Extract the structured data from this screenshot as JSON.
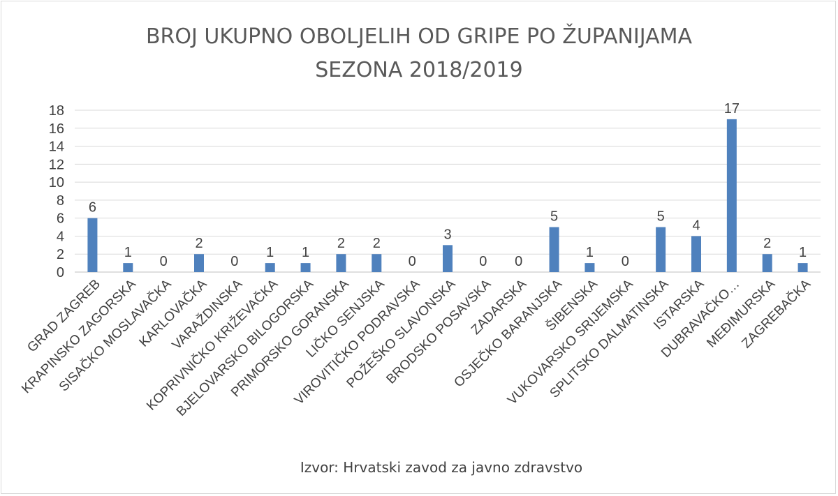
{
  "chart_data": {
    "type": "bar",
    "title": "BROJ UKUPNO OBOLJELIH OD GRIPE PO ŽUPANIJAMA",
    "subtitle": "SEZONA 2018/2019",
    "categories": [
      "GRAD ZAGREB",
      "KRAPINSKO ZAGORSKA",
      "SISAČKO MOSLAVAČKA",
      "KARLOVAČKA",
      "VARAŽDINSKA",
      "KOPRIVNIČKO KRIŽEVAČKA",
      "BJELOVARSKO BILOGORSKA",
      "PRIMORSKO GORANSKA",
      "LIČKO SENJSKA",
      "VIROVITIČKO PODRAVSKA",
      "POŽEŠKO SLAVONSKA",
      "BRODSKO POSAVSKA",
      "ZADARSKA",
      "OSJEČKO BARANJSKA",
      "ŠIBENSKA",
      "VUKOVARSKO SRIJEMSKA",
      "SPLITSKO DALMATINSKA",
      "ISTARSKA",
      "DUBRAVAČKO…",
      "MEĐIMURSKA",
      "ZAGREBAČKA"
    ],
    "values": [
      6,
      1,
      0,
      2,
      0,
      1,
      1,
      2,
      2,
      0,
      3,
      0,
      0,
      5,
      1,
      0,
      5,
      4,
      17,
      2,
      1
    ],
    "ylim": [
      0,
      18
    ],
    "yticks": [
      0,
      2,
      4,
      6,
      8,
      10,
      12,
      14,
      16,
      18
    ],
    "xlabel": "",
    "ylabel": "",
    "grid": true,
    "data_labels": true,
    "bar_color": "#4f81bd",
    "grid_color": "#d9d9d9",
    "source": "Izvor: Hrvatski zavod za javno zdravstvo"
  }
}
